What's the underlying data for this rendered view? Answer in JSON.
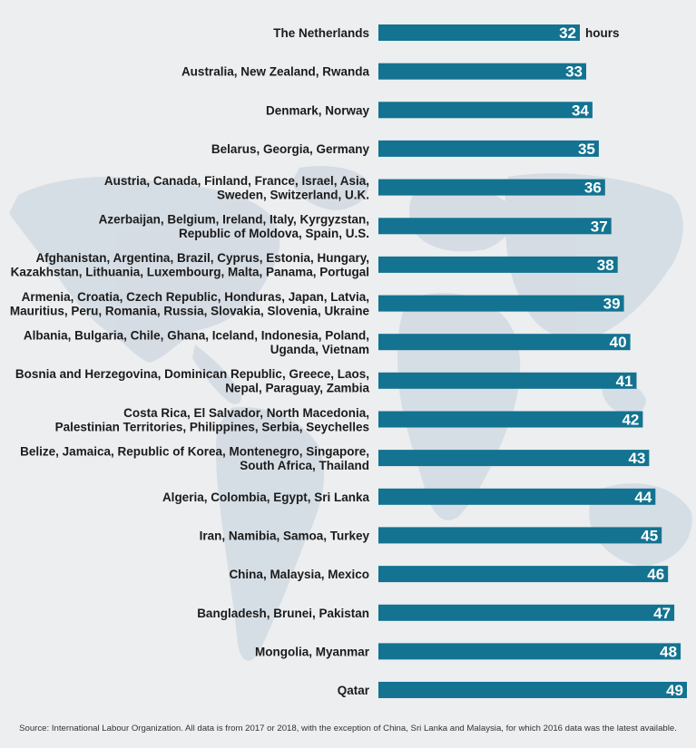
{
  "chart_data": {
    "type": "bar",
    "orientation": "horizontal",
    "title": "",
    "xlabel": "",
    "ylabel": "",
    "unit": "hours",
    "xlim": [
      0,
      49
    ],
    "grid": false,
    "legend": "none",
    "bar_color": "#137391",
    "categories": [
      [
        "The Netherlands"
      ],
      [
        "Australia, New Zealand, Rwanda"
      ],
      [
        "Denmark, Norway"
      ],
      [
        "Belarus, Georgia, Germany"
      ],
      [
        "Austria, Canada, Finland, France, Israel, Asia,",
        "Sweden, Switzerland, U.K."
      ],
      [
        "Azerbaijan, Belgium, Ireland, Italy, Kyrgyzstan,",
        "Republic of Moldova, Spain, U.S."
      ],
      [
        "Afghanistan, Argentina, Brazil, Cyprus, Estonia, Hungary,",
        "Kazakhstan, Lithuania, Luxembourg, Malta, Panama, Portugal"
      ],
      [
        "Armenia, Croatia, Czech Republic, Honduras, Japan, Latvia,",
        "Mauritius, Peru, Romania, Russia, Slovakia, Slovenia, Ukraine"
      ],
      [
        "Albania, Bulgaria, Chile, Ghana, Iceland, Indonesia, Poland,",
        "Uganda, Vietnam"
      ],
      [
        "Bosnia and Herzegovina, Dominican Republic, Greece, Laos,",
        "Nepal, Paraguay, Zambia"
      ],
      [
        "Costa Rica, El Salvador, North Macedonia,",
        "Palestinian Territories, Philippines, Serbia, Seychelles"
      ],
      [
        "Belize, Jamaica, Republic of Korea, Montenegro, Singapore,",
        "South Africa, Thailand"
      ],
      [
        "Algeria, Colombia, Egypt, Sri Lanka"
      ],
      [
        "Iran, Namibia, Samoa, Turkey"
      ],
      [
        "China, Malaysia, Mexico"
      ],
      [
        "Bangladesh, Brunei, Pakistan"
      ],
      [
        "Mongolia, Myanmar"
      ],
      [
        "Qatar"
      ]
    ],
    "values": [
      32,
      33,
      34,
      35,
      36,
      37,
      38,
      39,
      40,
      41,
      42,
      43,
      44,
      45,
      46,
      47,
      48,
      49
    ]
  },
  "source": "Source: International Labour Organization. All data is from 2017 or 2018, with the exception of China, Sri Lanka and Malaysia, for which 2016 data was the latest available."
}
